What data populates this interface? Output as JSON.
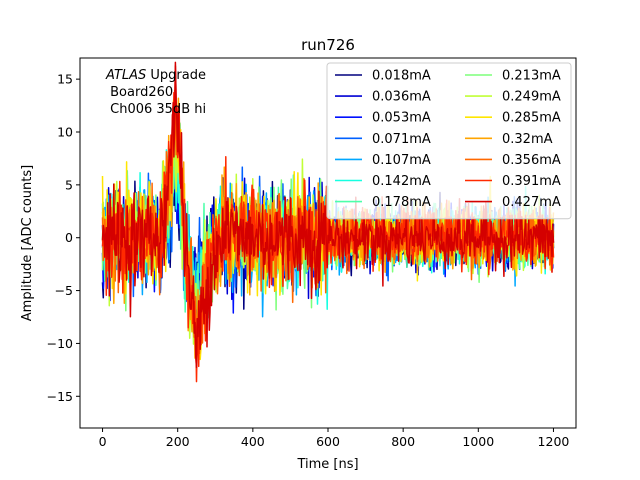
{
  "chart_data": {
    "type": "line",
    "title": "run726",
    "xlabel": "Time [ns]",
    "ylabel": "Amplitude [ADC counts]",
    "xlim": [
      -60,
      1260
    ],
    "ylim": [
      -18,
      17
    ],
    "xticks": [
      0,
      200,
      400,
      600,
      800,
      1000,
      1200
    ],
    "yticks": [
      -15,
      -10,
      -5,
      0,
      5,
      10,
      15
    ],
    "xtick_labels": [
      "0",
      "200",
      "400",
      "600",
      "800",
      "1000",
      "1200"
    ],
    "ytick_labels": [
      "−15",
      "−10",
      "−5",
      "0",
      "5",
      "10",
      "15"
    ],
    "annotation": {
      "italic_part": "ATLAS",
      "normal_part": " Upgrade",
      "line2": " Board260",
      "line3": " Ch006 35dB hi"
    },
    "legend_position": "top-right",
    "legend_columns": 2,
    "series": [
      {
        "name": "0.018mA",
        "color": "#00007f"
      },
      {
        "name": "0.036mA",
        "color": "#0000d4"
      },
      {
        "name": "0.053mA",
        "color": "#0010ff"
      },
      {
        "name": "0.071mA",
        "color": "#0060ff"
      },
      {
        "name": "0.107mA",
        "color": "#00a8ff"
      },
      {
        "name": "0.142mA",
        "color": "#16ffe1"
      },
      {
        "name": "0.178mA",
        "color": "#4dffaa"
      },
      {
        "name": "0.213mA",
        "color": "#7dff7a"
      },
      {
        "name": "0.249mA",
        "color": "#c1ff36"
      },
      {
        "name": "0.285mA",
        "color": "#ffe600"
      },
      {
        "name": "0.32mA",
        "color": "#ffa400"
      },
      {
        "name": "0.356mA",
        "color": "#ff6800"
      },
      {
        "name": "0.391mA",
        "color": "#ff2a00"
      },
      {
        "name": "0.427mA",
        "color": "#d40000"
      }
    ],
    "waveform": {
      "x_start": 0,
      "x_end": 1200,
      "points": 600,
      "pulse_points": [
        [
          150,
          0
        ],
        [
          165,
          3
        ],
        [
          180,
          7
        ],
        [
          195,
          13
        ],
        [
          205,
          9
        ],
        [
          215,
          2
        ],
        [
          225,
          -3
        ],
        [
          240,
          -7
        ],
        [
          250,
          -10
        ],
        [
          262,
          -8
        ],
        [
          280,
          -4
        ],
        [
          300,
          -1
        ],
        [
          330,
          1
        ],
        [
          360,
          0
        ]
      ],
      "noise_amplitude_early": 3.0,
      "noise_amplitude_late": 1.8
    }
  }
}
